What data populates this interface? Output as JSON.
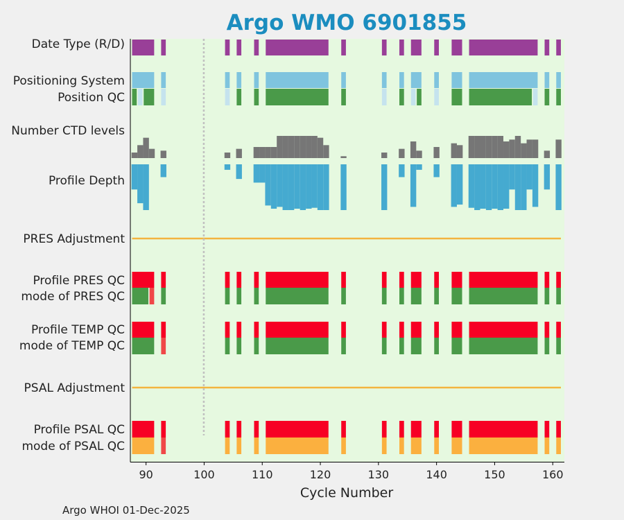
{
  "chart_data": {
    "type": "heatmap",
    "title": "Argo WMO 6901855",
    "xlabel": "Cycle Number",
    "xlim": [
      87.3,
      162.0
    ],
    "xticks": [
      90,
      100,
      110,
      120,
      130,
      140,
      150,
      160
    ],
    "footer": "Argo WHOI 01-Dec-2025",
    "background_color": "#e6f9e0",
    "colors": {
      "purple": "#993f98",
      "lightblue": "#7fc4de",
      "paleblue": "#c5e3ee",
      "green": "#4a9a49",
      "gray": "#767676",
      "cyan": "#45aad0",
      "orange": "#f3b43f",
      "red": "#f70024",
      "lightred": "#f04848",
      "amber": "#fbb03f",
      "dotted_line": "#c0c0c0"
    },
    "row_labels": [
      "Date Type (R/D)",
      "Positioning System",
      "Position QC",
      "Number CTD levels",
      "Profile Depth",
      "PRES Adjustment",
      "Profile PRES QC",
      "mode of PRES QC",
      "Profile TEMP QC",
      "mode of TEMP QC",
      "PSAL Adjustment",
      "Profile PSAL QC",
      "mode of PSAL QC"
    ],
    "reference_cycle": 100,
    "rows": {
      "date_type": [
        [
          88,
          91,
          "purple"
        ],
        [
          93,
          93,
          "purple"
        ],
        [
          104,
          104,
          "purple"
        ],
        [
          106,
          106,
          "purple"
        ],
        [
          109,
          109,
          "purple"
        ],
        [
          111,
          121,
          "purple"
        ],
        [
          124,
          124,
          "purple"
        ],
        [
          131,
          131,
          "purple"
        ],
        [
          134,
          134,
          "purple"
        ],
        [
          136,
          137,
          "purple"
        ],
        [
          140,
          140,
          "purple"
        ],
        [
          143,
          144,
          "purple"
        ],
        [
          146,
          157,
          "purple"
        ],
        [
          159,
          159,
          "purple"
        ],
        [
          161,
          161,
          "purple"
        ]
      ],
      "positioning_system": [
        [
          88,
          91,
          "lightblue"
        ],
        [
          93,
          93,
          "lightblue"
        ],
        [
          104,
          104,
          "lightblue"
        ],
        [
          106,
          106,
          "lightblue"
        ],
        [
          109,
          109,
          "lightblue"
        ],
        [
          111,
          121,
          "lightblue"
        ],
        [
          124,
          124,
          "lightblue"
        ],
        [
          131,
          131,
          "lightblue"
        ],
        [
          134,
          134,
          "lightblue"
        ],
        [
          136,
          137,
          "lightblue"
        ],
        [
          140,
          140,
          "lightblue"
        ],
        [
          143,
          144,
          "lightblue"
        ],
        [
          146,
          157,
          "lightblue"
        ],
        [
          159,
          159,
          "lightblue"
        ],
        [
          161,
          161,
          "lightblue"
        ]
      ],
      "position_qc": [
        [
          88,
          88,
          "green"
        ],
        [
          89,
          89,
          "paleblue"
        ],
        [
          90,
          91,
          "green"
        ],
        [
          93,
          93,
          "paleblue"
        ],
        [
          104,
          104,
          "paleblue"
        ],
        [
          106,
          106,
          "green"
        ],
        [
          109,
          109,
          "green"
        ],
        [
          111,
          121,
          "green"
        ],
        [
          124,
          124,
          "green"
        ],
        [
          131,
          131,
          "paleblue"
        ],
        [
          134,
          134,
          "green"
        ],
        [
          136,
          136,
          "paleblue"
        ],
        [
          137,
          137,
          "green"
        ],
        [
          140,
          140,
          "paleblue"
        ],
        [
          143,
          144,
          "green"
        ],
        [
          146,
          156,
          "green"
        ],
        [
          157,
          157,
          "paleblue"
        ],
        [
          159,
          159,
          "green"
        ],
        [
          161,
          161,
          "green"
        ]
      ],
      "ctd_levels": [
        [
          88,
          3
        ],
        [
          89,
          7
        ],
        [
          90,
          11
        ],
        [
          91,
          5
        ],
        [
          93,
          4
        ],
        [
          104,
          3
        ],
        [
          106,
          5
        ],
        [
          109,
          6
        ],
        [
          110,
          6
        ],
        [
          111,
          6
        ],
        [
          112,
          6
        ],
        [
          113,
          12
        ],
        [
          114,
          12
        ],
        [
          115,
          12
        ],
        [
          116,
          12
        ],
        [
          117,
          12
        ],
        [
          118,
          12
        ],
        [
          119,
          12
        ],
        [
          120,
          11
        ],
        [
          121,
          7
        ],
        [
          124,
          1
        ],
        [
          131,
          3
        ],
        [
          134,
          5
        ],
        [
          136,
          9
        ],
        [
          137,
          4
        ],
        [
          140,
          6
        ],
        [
          143,
          8
        ],
        [
          144,
          7
        ],
        [
          146,
          12
        ],
        [
          147,
          12
        ],
        [
          148,
          12
        ],
        [
          149,
          12
        ],
        [
          150,
          12
        ],
        [
          151,
          12
        ],
        [
          152,
          9
        ],
        [
          153,
          10
        ],
        [
          154,
          12
        ],
        [
          155,
          8
        ],
        [
          156,
          10
        ],
        [
          157,
          10
        ],
        [
          159,
          4
        ],
        [
          161,
          10
        ]
      ],
      "ctd_levels_max": 12,
      "profile_depth": [
        [
          88,
          0.55
        ],
        [
          89,
          0.85
        ],
        [
          90,
          1.0
        ],
        [
          93,
          0.28
        ],
        [
          104,
          0.12
        ],
        [
          106,
          0.32
        ],
        [
          109,
          0.4
        ],
        [
          110,
          0.4
        ],
        [
          111,
          1.0
        ],
        [
          112,
          1.0
        ],
        [
          113,
          1.0
        ],
        [
          114,
          1.0
        ],
        [
          115,
          1.0
        ],
        [
          116,
          1.0
        ],
        [
          117,
          1.0
        ],
        [
          118,
          1.0
        ],
        [
          119,
          1.0
        ],
        [
          120,
          1.0
        ],
        [
          121,
          1.0
        ],
        [
          124,
          1.0
        ],
        [
          131,
          1.0
        ],
        [
          134,
          0.28
        ],
        [
          136,
          0.93
        ],
        [
          137,
          0.12
        ],
        [
          140,
          0.28
        ],
        [
          143,
          1.0
        ],
        [
          144,
          0.88
        ],
        [
          146,
          1.0
        ],
        [
          147,
          1.0
        ],
        [
          148,
          1.0
        ],
        [
          149,
          1.0
        ],
        [
          150,
          1.0
        ],
        [
          151,
          1.0
        ],
        [
          152,
          1.0
        ],
        [
          153,
          0.55
        ],
        [
          154,
          1.0
        ],
        [
          155,
          1.0
        ],
        [
          156,
          0.55
        ],
        [
          157,
          0.93
        ],
        [
          159,
          0.55
        ],
        [
          161,
          1.0
        ]
      ],
      "profile_depth_bottom_step": [
        [
          111,
          0.9
        ],
        [
          112,
          0.97
        ],
        [
          113,
          0.93
        ],
        [
          114,
          1.0
        ],
        [
          115,
          1.0
        ],
        [
          116,
          0.97
        ],
        [
          117,
          1.0
        ],
        [
          118,
          0.97
        ],
        [
          119,
          0.95
        ],
        [
          120,
          1.0
        ],
        [
          121,
          1.0
        ],
        [
          143,
          0.93
        ],
        [
          144,
          0.88
        ],
        [
          146,
          0.95
        ],
        [
          147,
          1.0
        ],
        [
          148,
          0.97
        ],
        [
          149,
          1.0
        ],
        [
          150,
          0.97
        ],
        [
          151,
          1.0
        ],
        [
          152,
          0.97
        ],
        [
          154,
          1.0
        ],
        [
          155,
          1.0
        ]
      ],
      "pres_adjustment": {
        "from": 88,
        "to": 161,
        "color": "orange"
      },
      "profile_pres_qc": [
        [
          88,
          91,
          "red"
        ],
        [
          93,
          93,
          "red"
        ],
        [
          104,
          104,
          "red"
        ],
        [
          106,
          106,
          "red"
        ],
        [
          109,
          109,
          "red"
        ],
        [
          111,
          121,
          "red"
        ],
        [
          124,
          124,
          "red"
        ],
        [
          131,
          131,
          "red"
        ],
        [
          134,
          134,
          "red"
        ],
        [
          136,
          137,
          "red"
        ],
        [
          140,
          140,
          "red"
        ],
        [
          143,
          144,
          "red"
        ],
        [
          146,
          157,
          "red"
        ],
        [
          159,
          159,
          "red"
        ],
        [
          161,
          161,
          "red"
        ]
      ],
      "mode_pres_qc": [
        [
          88,
          90,
          "green"
        ],
        [
          91,
          91,
          "lightred"
        ],
        [
          93,
          93,
          "green"
        ],
        [
          104,
          104,
          "green"
        ],
        [
          106,
          106,
          "green"
        ],
        [
          109,
          109,
          "green"
        ],
        [
          111,
          121,
          "green"
        ],
        [
          124,
          124,
          "green"
        ],
        [
          131,
          131,
          "green"
        ],
        [
          134,
          134,
          "green"
        ],
        [
          136,
          137,
          "green"
        ],
        [
          140,
          140,
          "green"
        ],
        [
          143,
          144,
          "green"
        ],
        [
          146,
          157,
          "green"
        ],
        [
          159,
          159,
          "green"
        ],
        [
          161,
          161,
          "green"
        ]
      ],
      "profile_temp_qc": [
        [
          88,
          91,
          "red"
        ],
        [
          93,
          93,
          "red"
        ],
        [
          104,
          104,
          "red"
        ],
        [
          106,
          106,
          "red"
        ],
        [
          109,
          109,
          "red"
        ],
        [
          111,
          121,
          "red"
        ],
        [
          124,
          124,
          "red"
        ],
        [
          131,
          131,
          "red"
        ],
        [
          134,
          134,
          "red"
        ],
        [
          136,
          137,
          "red"
        ],
        [
          140,
          140,
          "red"
        ],
        [
          143,
          144,
          "red"
        ],
        [
          146,
          157,
          "red"
        ],
        [
          159,
          159,
          "red"
        ],
        [
          161,
          161,
          "red"
        ]
      ],
      "mode_temp_qc": [
        [
          88,
          91,
          "green"
        ],
        [
          93,
          93,
          "lightred"
        ],
        [
          104,
          104,
          "green"
        ],
        [
          106,
          106,
          "green"
        ],
        [
          109,
          109,
          "green"
        ],
        [
          111,
          121,
          "green"
        ],
        [
          124,
          124,
          "green"
        ],
        [
          131,
          131,
          "green"
        ],
        [
          134,
          134,
          "green"
        ],
        [
          136,
          137,
          "green"
        ],
        [
          140,
          140,
          "green"
        ],
        [
          143,
          144,
          "green"
        ],
        [
          146,
          157,
          "green"
        ],
        [
          159,
          159,
          "green"
        ],
        [
          161,
          161,
          "green"
        ]
      ],
      "psal_adjustment": {
        "from": 88,
        "to": 161,
        "color": "orange"
      },
      "profile_psal_qc": [
        [
          88,
          91,
          "red"
        ],
        [
          93,
          93,
          "red"
        ],
        [
          104,
          104,
          "red"
        ],
        [
          106,
          106,
          "red"
        ],
        [
          109,
          109,
          "red"
        ],
        [
          111,
          121,
          "red"
        ],
        [
          124,
          124,
          "red"
        ],
        [
          131,
          131,
          "red"
        ],
        [
          134,
          134,
          "red"
        ],
        [
          136,
          137,
          "red"
        ],
        [
          140,
          140,
          "red"
        ],
        [
          143,
          144,
          "red"
        ],
        [
          146,
          157,
          "red"
        ],
        [
          159,
          159,
          "red"
        ],
        [
          161,
          161,
          "red"
        ]
      ],
      "mode_psal_qc": [
        [
          88,
          91,
          "amber"
        ],
        [
          93,
          93,
          "lightred"
        ],
        [
          104,
          104,
          "amber"
        ],
        [
          106,
          106,
          "amber"
        ],
        [
          109,
          109,
          "amber"
        ],
        [
          111,
          121,
          "amber"
        ],
        [
          124,
          124,
          "amber"
        ],
        [
          131,
          131,
          "amber"
        ],
        [
          134,
          134,
          "amber"
        ],
        [
          136,
          137,
          "amber"
        ],
        [
          140,
          140,
          "amber"
        ],
        [
          143,
          144,
          "amber"
        ],
        [
          146,
          157,
          "amber"
        ],
        [
          159,
          159,
          "amber"
        ],
        [
          161,
          161,
          "amber"
        ]
      ]
    }
  }
}
